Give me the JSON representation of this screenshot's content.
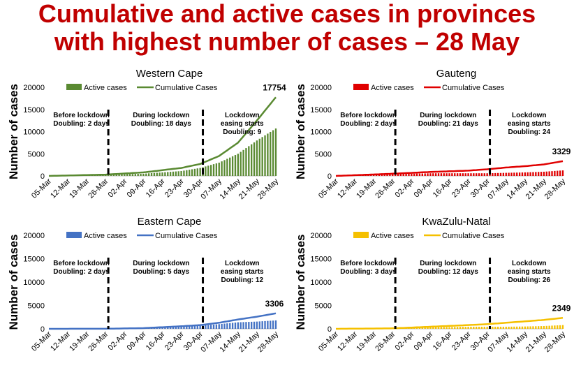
{
  "title": {
    "line1": "Cumulative and active cases in provinces",
    "line2": "with highest number of cases – 28 May"
  },
  "chart_data": [
    {
      "type": "bar+line",
      "title": "Western Cape",
      "ylabel": "Number of cases",
      "ylim": [
        0,
        20000
      ],
      "yticks": [
        "0",
        "5000",
        "10000",
        "15000",
        "20000"
      ],
      "xticks": [
        "05-Mar",
        "12-Mar",
        "19-Mar",
        "26-Mar",
        "02-Apr",
        "09-Apr",
        "16-Apr",
        "23-Apr",
        "30-Apr",
        "07-May",
        "14-May",
        "21-May",
        "28-May"
      ],
      "legend": [
        "Active cases",
        "Cumulative Cases"
      ],
      "color": "#5a8a32",
      "end_label": "17754",
      "lockdown_lines": [
        "27-Mar",
        "01-May"
      ],
      "annotations": [
        {
          "lines": [
            "Before lockdown",
            "Doubling: 2 days"
          ]
        },
        {
          "lines": [
            "During lockdown",
            "Doubling: 18 days"
          ]
        },
        {
          "lines": [
            "Lockdown",
            "easing starts",
            "Doubling: 9"
          ]
        }
      ],
      "series": [
        {
          "name": "Cumulative Cases",
          "type": "line",
          "x": [
            "05-Mar",
            "26-Mar",
            "09-Apr",
            "23-Apr",
            "30-Apr",
            "07-May",
            "14-May",
            "21-May",
            "28-May"
          ],
          "values": [
            0,
            300,
            800,
            1800,
            2700,
            4500,
            7500,
            12500,
            17754
          ]
        },
        {
          "name": "Active cases",
          "type": "bar",
          "x": [
            "05-Mar",
            "26-Mar",
            "09-Apr",
            "23-Apr",
            "30-Apr",
            "07-May",
            "14-May",
            "21-May",
            "28-May"
          ],
          "values": [
            0,
            250,
            500,
            1100,
            1800,
            3000,
            5000,
            8000,
            10700
          ]
        }
      ]
    },
    {
      "type": "bar+line",
      "title": "Gauteng",
      "ylabel": "Number of cases",
      "ylim": [
        0,
        20000
      ],
      "yticks": [
        "0",
        "5000",
        "10000",
        "15000",
        "20000"
      ],
      "xticks": [
        "05-Mar",
        "12-Mar",
        "19-Mar",
        "26-Mar",
        "02-Apr",
        "09-Apr",
        "16-Apr",
        "23-Apr",
        "30-Apr",
        "07-May",
        "14-May",
        "21-May",
        "28-May"
      ],
      "legend": [
        "Active cases",
        "Cumulative Cases"
      ],
      "color": "#e00000",
      "end_label": "3329",
      "lockdown_lines": [
        "27-Mar",
        "01-May"
      ],
      "annotations": [
        {
          "lines": [
            "Before lockdown",
            "Doubling: 2 days"
          ]
        },
        {
          "lines": [
            "During lockdown",
            "Doubling: 21 days"
          ]
        },
        {
          "lines": [
            "Lockdown",
            "easing starts",
            "Doubling: 24"
          ]
        }
      ],
      "series": [
        {
          "name": "Cumulative Cases",
          "type": "line",
          "x": [
            "05-Mar",
            "26-Mar",
            "09-Apr",
            "23-Apr",
            "30-Apr",
            "07-May",
            "14-May",
            "21-May",
            "28-May"
          ],
          "values": [
            0,
            500,
            900,
            1200,
            1500,
            1900,
            2200,
            2600,
            3329
          ]
        },
        {
          "name": "Active cases",
          "type": "bar",
          "x": [
            "05-Mar",
            "26-Mar",
            "09-Apr",
            "23-Apr",
            "30-Apr",
            "07-May",
            "14-May",
            "21-May",
            "28-May"
          ],
          "values": [
            0,
            400,
            600,
            600,
            600,
            700,
            800,
            950,
            1250
          ]
        }
      ]
    },
    {
      "type": "bar+line",
      "title": "Eastern Cape",
      "ylabel": "Number of cases",
      "ylim": [
        0,
        20000
      ],
      "yticks": [
        "0",
        "5000",
        "10000",
        "15000",
        "20000"
      ],
      "xticks": [
        "05-Mar",
        "12-Mar",
        "19-Mar",
        "26-Mar",
        "02-Apr",
        "09-Apr",
        "16-Apr",
        "23-Apr",
        "30-Apr",
        "07-May",
        "14-May",
        "21-May",
        "28-May"
      ],
      "legend": [
        "Active cases",
        "Cumulative Cases"
      ],
      "color": "#4472c4",
      "end_label": "3306",
      "lockdown_lines": [
        "27-Mar",
        "01-May"
      ],
      "annotations": [
        {
          "lines": [
            "Before lockdown",
            "Doubling: 2 days"
          ]
        },
        {
          "lines": [
            "During lockdown",
            "Doubling: 5 days"
          ]
        },
        {
          "lines": [
            "Lockdown",
            "easing starts",
            "Doubling: 12"
          ]
        }
      ],
      "series": [
        {
          "name": "Cumulative Cases",
          "type": "line",
          "x": [
            "05-Mar",
            "26-Mar",
            "09-Apr",
            "23-Apr",
            "30-Apr",
            "07-May",
            "14-May",
            "21-May",
            "28-May"
          ],
          "values": [
            0,
            20,
            150,
            550,
            800,
            1300,
            2000,
            2600,
            3306
          ]
        },
        {
          "name": "Active cases",
          "type": "bar",
          "x": [
            "05-Mar",
            "26-Mar",
            "09-Apr",
            "23-Apr",
            "30-Apr",
            "07-May",
            "14-May",
            "21-May",
            "28-May"
          ],
          "values": [
            0,
            15,
            120,
            450,
            650,
            1000,
            1400,
            1550,
            1800
          ]
        }
      ]
    },
    {
      "type": "bar+line",
      "title": "KwaZulu-Natal",
      "ylabel": "Number of cases",
      "ylim": [
        0,
        20000
      ],
      "yticks": [
        "0",
        "5000",
        "10000",
        "15000",
        "20000"
      ],
      "xticks": [
        "05-Mar",
        "12-Mar",
        "19-Mar",
        "26-Mar",
        "02-Apr",
        "09-Apr",
        "16-Apr",
        "23-Apr",
        "30-Apr",
        "07-May",
        "14-May",
        "21-May",
        "28-May"
      ],
      "legend": [
        "Active cases",
        "Cumulative Cases"
      ],
      "color": "#f5c000",
      "end_label": "2349",
      "lockdown_lines": [
        "27-Mar",
        "01-May"
      ],
      "annotations": [
        {
          "lines": [
            "Before lockdown",
            "Doubling: 3 days"
          ]
        },
        {
          "lines": [
            "During lockdown",
            "Doubling: 12 days"
          ]
        },
        {
          "lines": [
            "Lockdown",
            "easing starts",
            "Doubling: 26"
          ]
        }
      ],
      "series": [
        {
          "name": "Cumulative Cases",
          "type": "line",
          "x": [
            "05-Mar",
            "26-Mar",
            "09-Apr",
            "23-Apr",
            "30-Apr",
            "07-May",
            "14-May",
            "21-May",
            "28-May"
          ],
          "values": [
            0,
            100,
            450,
            800,
            1000,
            1300,
            1600,
            1900,
            2349
          ]
        },
        {
          "name": "Active cases",
          "type": "bar",
          "x": [
            "05-Mar",
            "26-Mar",
            "09-Apr",
            "23-Apr",
            "30-Apr",
            "07-May",
            "14-May",
            "21-May",
            "28-May"
          ],
          "values": [
            0,
            80,
            300,
            450,
            450,
            450,
            500,
            600,
            800
          ]
        }
      ]
    }
  ]
}
